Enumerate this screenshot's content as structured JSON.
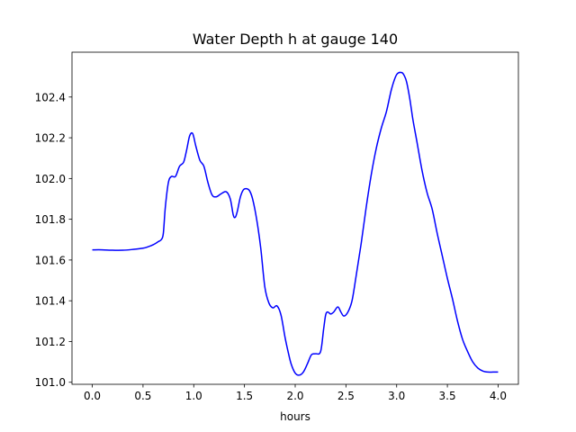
{
  "chart_data": {
    "type": "line",
    "title": "Water Depth h at gauge 140",
    "xlabel": "hours",
    "ylabel": "",
    "xlim": [
      -0.2,
      4.2
    ],
    "ylim": [
      100.99,
      102.62
    ],
    "xticks": [
      0.0,
      0.5,
      1.0,
      1.5,
      2.0,
      2.5,
      3.0,
      3.5,
      4.0
    ],
    "xtick_labels": [
      "0.0",
      "0.5",
      "1.0",
      "1.5",
      "2.0",
      "2.5",
      "3.0",
      "3.5",
      "4.0"
    ],
    "yticks": [
      101.0,
      101.2,
      101.4,
      101.6,
      101.8,
      102.0,
      102.2,
      102.4
    ],
    "ytick_labels": [
      "101.0",
      "101.2",
      "101.4",
      "101.6",
      "101.8",
      "102.0",
      "102.2",
      "102.4"
    ],
    "grid": false,
    "series": [
      {
        "color": "#0000ff",
        "x": [
          0.0,
          0.1,
          0.2,
          0.3,
          0.4,
          0.5,
          0.55,
          0.6,
          0.65,
          0.68,
          0.7,
          0.72,
          0.75,
          0.78,
          0.82,
          0.86,
          0.9,
          0.93,
          0.96,
          0.99,
          1.02,
          1.06,
          1.1,
          1.14,
          1.18,
          1.22,
          1.27,
          1.32,
          1.36,
          1.39,
          1.41,
          1.43,
          1.46,
          1.49,
          1.52,
          1.55,
          1.58,
          1.62,
          1.66,
          1.7,
          1.74,
          1.78,
          1.82,
          1.86,
          1.9,
          1.93,
          1.96,
          2.0,
          2.04,
          2.08,
          2.12,
          2.16,
          2.2,
          2.25,
          2.28,
          2.3,
          2.32,
          2.35,
          2.38,
          2.42,
          2.45,
          2.48,
          2.52,
          2.56,
          2.6,
          2.65,
          2.7,
          2.75,
          2.8,
          2.85,
          2.9,
          2.95,
          3.0,
          3.05,
          3.08,
          3.1,
          3.13,
          3.16,
          3.2,
          3.25,
          3.3,
          3.35,
          3.4,
          3.45,
          3.5,
          3.55,
          3.6,
          3.65,
          3.7,
          3.75,
          3.8,
          3.85,
          3.9,
          3.95,
          4.0
        ],
        "y": [
          101.65,
          101.65,
          101.648,
          101.648,
          101.652,
          101.658,
          101.665,
          101.675,
          101.69,
          101.7,
          101.73,
          101.86,
          101.98,
          102.01,
          102.01,
          102.06,
          102.08,
          102.14,
          102.21,
          102.22,
          102.16,
          102.09,
          102.06,
          101.98,
          101.92,
          101.91,
          101.925,
          101.935,
          101.9,
          101.82,
          101.81,
          101.84,
          101.91,
          101.945,
          101.95,
          101.94,
          101.9,
          101.8,
          101.66,
          101.47,
          101.39,
          101.365,
          101.375,
          101.33,
          101.22,
          101.15,
          101.09,
          101.045,
          101.035,
          101.05,
          101.09,
          101.135,
          101.14,
          101.15,
          101.26,
          101.33,
          101.345,
          101.335,
          101.345,
          101.37,
          101.345,
          101.325,
          101.345,
          101.4,
          101.52,
          101.68,
          101.86,
          102.02,
          102.15,
          102.25,
          102.33,
          102.44,
          102.51,
          102.52,
          102.5,
          102.47,
          102.39,
          102.29,
          102.18,
          102.04,
          101.93,
          101.85,
          101.73,
          101.62,
          101.51,
          101.41,
          101.3,
          101.21,
          101.15,
          101.1,
          101.07,
          101.055,
          101.05,
          101.05,
          101.05
        ]
      }
    ]
  }
}
